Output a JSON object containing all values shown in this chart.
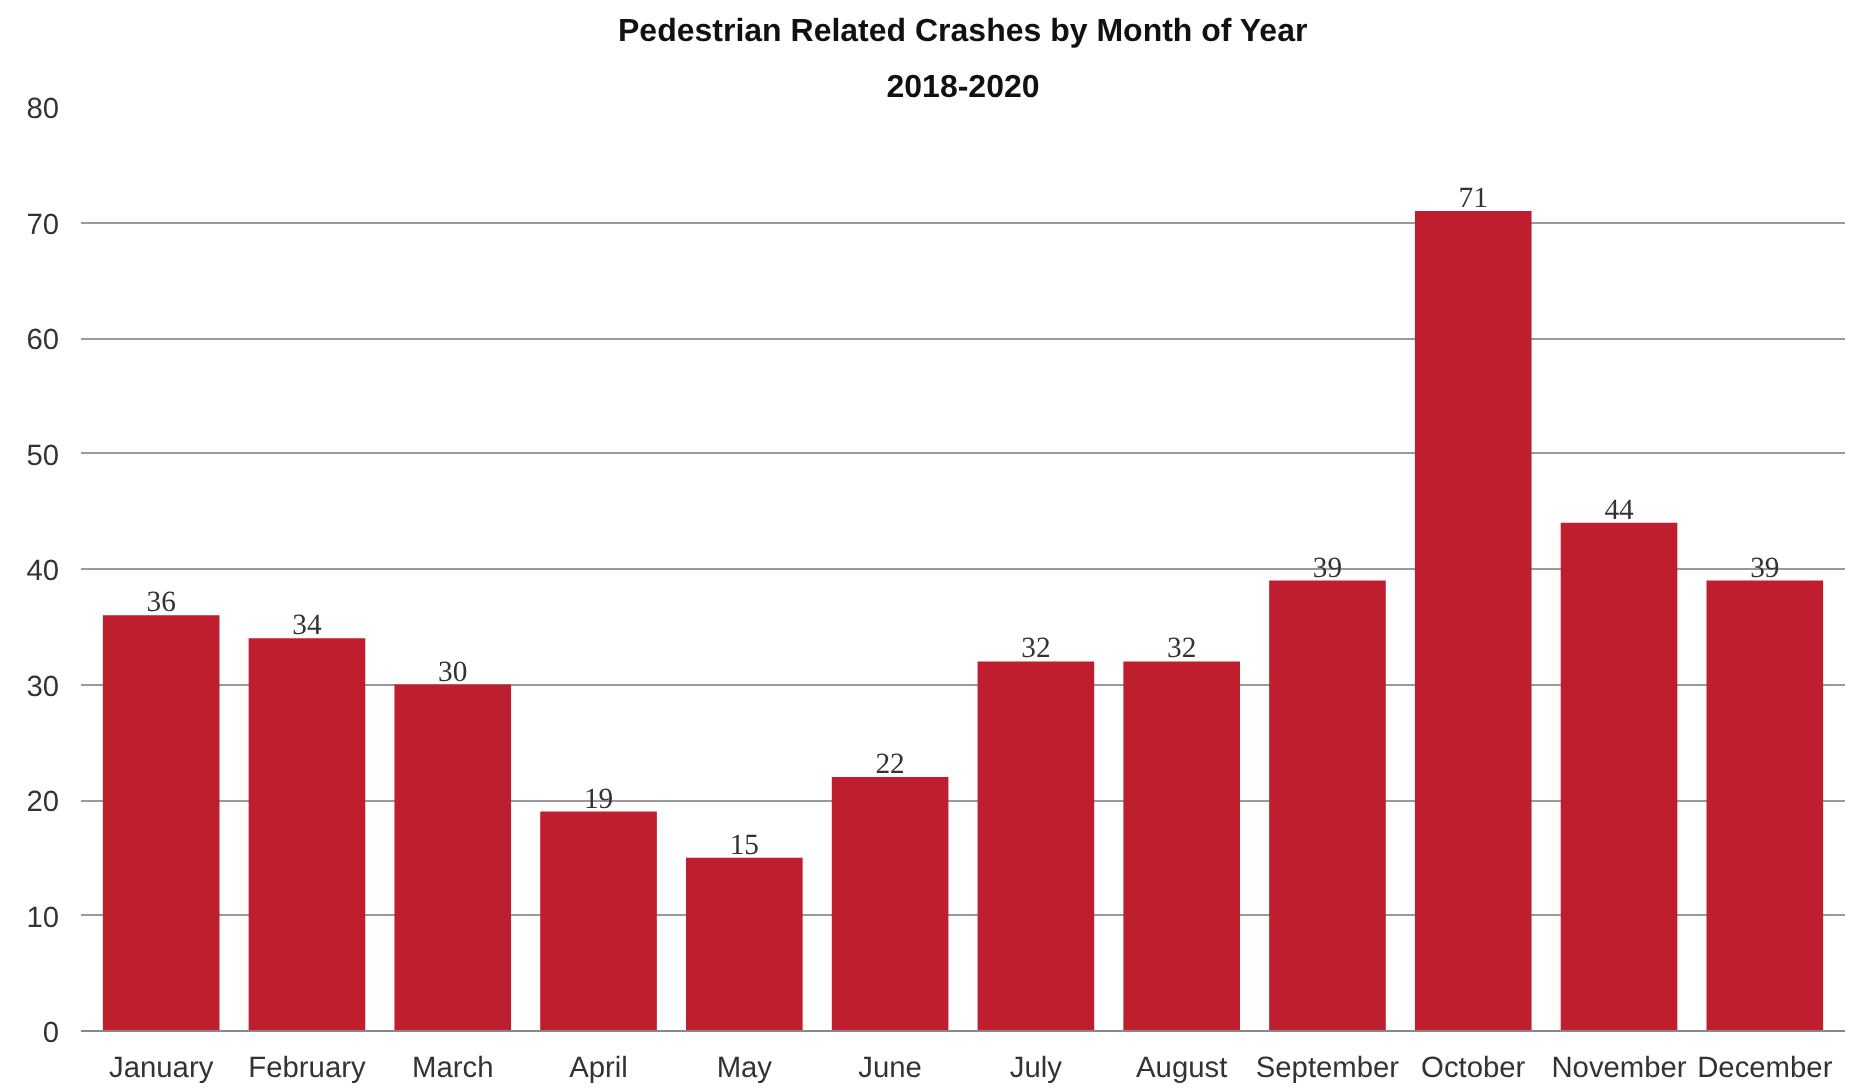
{
  "chart_data": {
    "type": "bar",
    "title": "Pedestrian Related Crashes by Month of Year",
    "subtitle": "2018-2020",
    "categories": [
      "January",
      "February",
      "March",
      "April",
      "May",
      "June",
      "July",
      "August",
      "September",
      "October",
      "November",
      "December"
    ],
    "values": [
      36,
      34,
      30,
      19,
      15,
      22,
      32,
      32,
      39,
      71,
      44,
      39
    ],
    "color": "#be1e2d",
    "ylim": [
      0,
      80
    ],
    "yticks": [
      0,
      10,
      20,
      30,
      40,
      50,
      60,
      70,
      80
    ],
    "grid": "y",
    "data_labels": true
  }
}
